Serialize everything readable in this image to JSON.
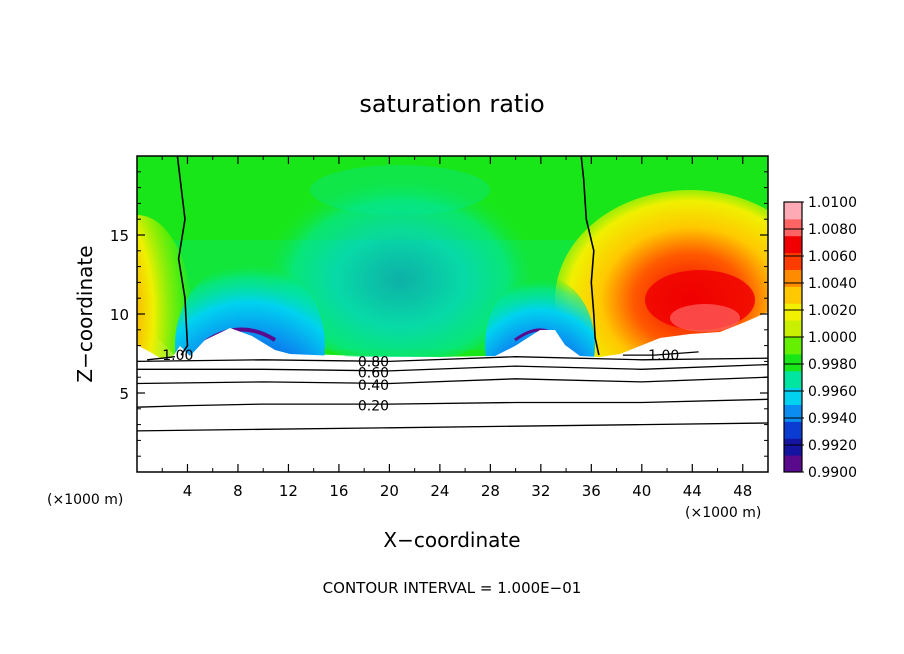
{
  "chart_data": {
    "type": "heatmap",
    "title": "saturation ratio",
    "xlabel": "X−coordinate",
    "ylabel": "Z−coordinate",
    "x_unit_left": "(×1000 m)",
    "x_unit_right": "(×1000 m)",
    "footer": "CONTOUR INTERVAL = 1.000E−01",
    "xlim": [
      0,
      50
    ],
    "ylim": [
      0,
      20
    ],
    "x_ticks": [
      4,
      8,
      12,
      16,
      20,
      24,
      28,
      32,
      36,
      40,
      44,
      48
    ],
    "x_tick_labels": [
      "4",
      "8",
      "12",
      "16",
      "20",
      "24",
      "28",
      "32",
      "36",
      "40",
      "44",
      "48"
    ],
    "y_ticks": [
      5,
      10,
      15
    ],
    "y_tick_labels": [
      "5",
      "10",
      "15"
    ],
    "colorbar": {
      "levels": [
        0.99,
        0.992,
        0.994,
        0.996,
        0.998,
        1.0,
        1.002,
        1.004,
        1.006,
        1.008,
        1.01
      ],
      "labels": [
        "0.9900",
        "0.9920",
        "0.9940",
        "0.9960",
        "0.9980",
        "1.0000",
        "1.0020",
        "1.0040",
        "1.0060",
        "1.0080",
        "1.0100"
      ],
      "colors": [
        "#5a0a8c",
        "#1414a0",
        "#0a3cd2",
        "#0a8cf0",
        "#00d2f0",
        "#00e6a0",
        "#19e619",
        "#64f000",
        "#c8f000",
        "#f0f000",
        "#ffc800",
        "#ff8c00",
        "#ff3c00",
        "#f00000",
        "#ff6464",
        "#ffaab4"
      ]
    },
    "contours": [
      {
        "label": "1.00",
        "segments": [
          [
            [
              0.8,
              7.1
            ],
            [
              2.0,
              7.2
            ],
            [
              3.0,
              7.3
            ]
          ],
          [
            [
              38.5,
              7.4
            ],
            [
              41.0,
              7.4
            ],
            [
              44.5,
              7.6
            ]
          ]
        ]
      },
      {
        "label": "0.80",
        "points": [
          [
            0,
            7.0
          ],
          [
            10,
            7.1
          ],
          [
            20,
            7.0
          ],
          [
            30,
            7.3
          ],
          [
            40,
            7.1
          ],
          [
            50,
            7.2
          ]
        ]
      },
      {
        "label": "0.60",
        "points": [
          [
            0,
            6.5
          ],
          [
            10,
            6.5
          ],
          [
            20,
            6.4
          ],
          [
            30,
            6.7
          ],
          [
            40,
            6.5
          ],
          [
            50,
            6.8
          ]
        ]
      },
      {
        "label": "0.40",
        "points": [
          [
            0,
            5.6
          ],
          [
            10,
            5.7
          ],
          [
            20,
            5.6
          ],
          [
            30,
            5.9
          ],
          [
            40,
            5.7
          ],
          [
            50,
            6.0
          ]
        ]
      },
      {
        "label": "0.20",
        "points": [
          [
            0,
            4.1
          ],
          [
            4,
            4.2
          ],
          [
            10,
            4.3
          ],
          [
            20,
            4.3
          ],
          [
            30,
            4.4
          ],
          [
            40,
            4.4
          ],
          [
            50,
            4.6
          ]
        ]
      },
      {
        "label": "",
        "points": [
          [
            0,
            2.6
          ],
          [
            10,
            2.7
          ],
          [
            20,
            2.8
          ],
          [
            30,
            2.9
          ],
          [
            40,
            3.0
          ],
          [
            50,
            3.1
          ]
        ]
      }
    ],
    "contour_label_positions": [
      {
        "text": "1.00",
        "x": 2.0,
        "y": 7.4
      },
      {
        "text": "0.80",
        "x": 17.5,
        "y": 7.0
      },
      {
        "text": "0.60",
        "x": 17.5,
        "y": 6.3
      },
      {
        "text": "0.40",
        "x": 17.5,
        "y": 5.5
      },
      {
        "text": "0.20",
        "x": 17.5,
        "y": 4.2
      },
      {
        "text": "1.00",
        "x": 40.5,
        "y": 7.4
      }
    ],
    "one_contours": [
      [
        [
          3.2,
          20
        ],
        [
          3.5,
          18
        ],
        [
          3.8,
          16
        ],
        [
          3.3,
          13.5
        ],
        [
          3.8,
          11
        ],
        [
          3.9,
          9.5
        ],
        [
          4.0,
          8
        ],
        [
          3.5,
          7.4
        ]
      ],
      [
        [
          35.2,
          20
        ],
        [
          35.4,
          18.5
        ],
        [
          35.6,
          16
        ],
        [
          36.2,
          14
        ],
        [
          36.0,
          12
        ],
        [
          36.2,
          10
        ],
        [
          36.3,
          8.5
        ],
        [
          36.6,
          7.4
        ]
      ]
    ]
  }
}
